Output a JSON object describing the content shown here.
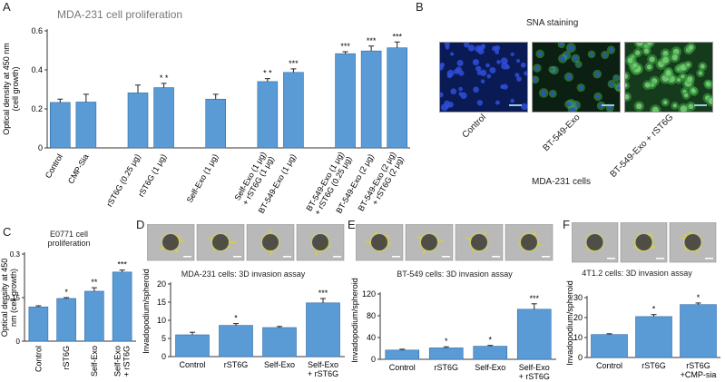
{
  "panel_labels": {
    "A": "A",
    "B": "B",
    "C": "C",
    "D": "D",
    "E": "E",
    "F": "F"
  },
  "panel_b": {
    "title": "SNA staining",
    "images": [
      "Control",
      "BT-549-Exo",
      "BT-549-Exo + rST6G"
    ],
    "caption": "MDA-231 cells",
    "colors": {
      "control_bg": "#0a1a55",
      "nuclei": "#2f4fd8",
      "green": "#3fa845",
      "dark": "#0b1f12"
    }
  },
  "chart_data": [
    {
      "id": "A",
      "type": "bar",
      "title": "MDA-231 cell proliferation",
      "ylabel": "Optical density at 450 nm\n(cell growth)",
      "ylim": [
        0,
        0.6
      ],
      "yticks": [
        "0",
        "0.2",
        "0.4",
        "0.6"
      ],
      "grid": false,
      "color": "#5b9bd5",
      "categories": [
        "Control",
        "CMP-Sia",
        "rST6G (0.25 μg)",
        "rST6G (1 μg)",
        "Self-Exo (1 μg)",
        "Self-Exo (1 μg)\n+ rST6G (1 μg)",
        "BT-549-Exo (1 μg)",
        "BT-549-Exo (1 μg)\n+ rST6G (0.25 μg)",
        "BT-549-Exo (2 μg)",
        "BT-549-Exo (2 μg)\n+ rST6G (2 μg)"
      ],
      "values": [
        0.233,
        0.235,
        0.282,
        0.309,
        0.25,
        0.34,
        0.387,
        0.483,
        0.497,
        0.513
      ],
      "errors": [
        0.017,
        0.04,
        0.04,
        0.022,
        0.025,
        0.015,
        0.018,
        0.01,
        0.025,
        0.03
      ],
      "annotations": [
        "",
        "",
        "",
        "* *",
        "",
        "* *",
        "***",
        "***",
        "***",
        "***"
      ]
    },
    {
      "id": "C",
      "type": "bar",
      "title": "E0771 cell\nproliferation",
      "ylabel": "Optical density at 450\nnm (cell growth)",
      "ylim": [
        0,
        0.3
      ],
      "yticks": [
        "0",
        "0.15",
        "0.3"
      ],
      "grid": false,
      "color": "#5b9bd5",
      "categories": [
        "Control",
        "rST6G",
        "Self-Exo",
        "Self-Exo\n+ rST6G"
      ],
      "values": [
        0.118,
        0.147,
        0.172,
        0.238
      ],
      "errors": [
        0.004,
        0.003,
        0.012,
        0.007
      ],
      "annotations": [
        "",
        "*",
        "**",
        "***"
      ]
    },
    {
      "id": "D",
      "type": "bar",
      "title": "MDA-231 cells: 3D invasion assay",
      "ylabel": "Invadopodium/spheroid",
      "ylim": [
        0,
        20
      ],
      "yticks": [
        "0",
        "5",
        "10",
        "15",
        "20"
      ],
      "grid": false,
      "color": "#5b9bd5",
      "categories": [
        "Control",
        "rST6G",
        "Self-Exo",
        "Self-Exo\n+ rST6G"
      ],
      "values": [
        6.0,
        8.6,
        8.0,
        14.8
      ],
      "errors": [
        0.7,
        0.5,
        0.3,
        1.2
      ],
      "annotations": [
        "",
        "*",
        "",
        "***"
      ]
    },
    {
      "id": "E",
      "type": "bar",
      "title": "BT-549 cells: 3D invasion assay",
      "ylabel": "Invadopodium/spheroid",
      "ylim": [
        0,
        120
      ],
      "yticks": [
        "0",
        "40",
        "80",
        "120"
      ],
      "grid": false,
      "color": "#5b9bd5",
      "categories": [
        "Control",
        "rST6G",
        "Self-Exo",
        "Self-Exo\n+ rST6G"
      ],
      "values": [
        17,
        21,
        24,
        92
      ],
      "errors": [
        1.5,
        2,
        1.5,
        10
      ],
      "annotations": [
        "",
        "*",
        "*",
        "***"
      ]
    },
    {
      "id": "F",
      "type": "bar",
      "title": "4T1.2 cells: 3D invasion assay",
      "ylabel": "Invadopodium/spheroid",
      "ylim": [
        0,
        30
      ],
      "yticks": [
        "0",
        "10",
        "20",
        "30"
      ],
      "grid": false,
      "color": "#5b9bd5",
      "categories": [
        "Control",
        "rST6G",
        "rST6G\n+CMP-sia"
      ],
      "values": [
        11.5,
        20.5,
        26.5
      ],
      "errors": [
        0.4,
        1.0,
        0.8
      ],
      "annotations": [
        "",
        "*",
        "*"
      ]
    }
  ]
}
